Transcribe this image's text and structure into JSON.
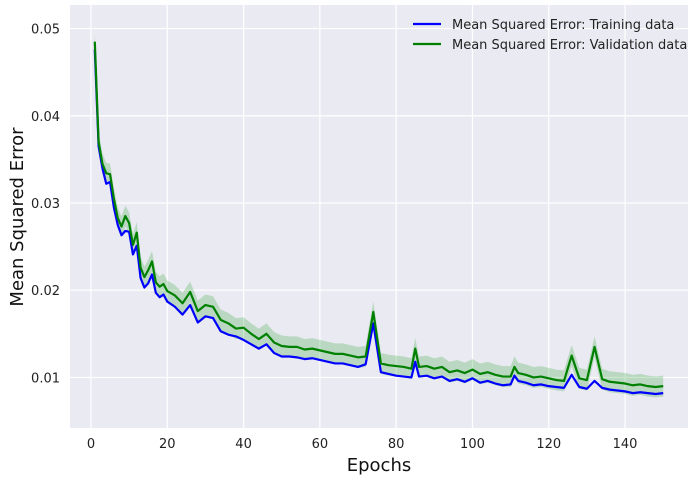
{
  "chart_data": {
    "type": "line",
    "xlabel": "Epochs",
    "ylabel": "Mean Squared Error",
    "xlim": [
      -5.5,
      156.5
    ],
    "ylim": [
      0.0042,
      0.0527
    ],
    "xticks": [
      0,
      20,
      40,
      60,
      80,
      100,
      120,
      140
    ],
    "yticks": [
      0.01,
      0.02,
      0.03,
      0.04,
      0.05
    ],
    "xtick_labels": [
      "0",
      "20",
      "40",
      "60",
      "80",
      "100",
      "120",
      "140"
    ],
    "ytick_labels": [
      "0.01",
      "0.02",
      "0.03",
      "0.04",
      "0.05"
    ],
    "grid": true,
    "legend_position": "top-right",
    "background": "#eaeaf2",
    "series": [
      {
        "name": "Mean Squared Error: Training data",
        "color": "#0000ff",
        "x": [
          1,
          2,
          3,
          4,
          5,
          6,
          7,
          8,
          9,
          10,
          11,
          12,
          13,
          14,
          15,
          16,
          17,
          18,
          19,
          20,
          22,
          24,
          26,
          28,
          30,
          32,
          34,
          36,
          38,
          40,
          42,
          44,
          46,
          48,
          50,
          52,
          54,
          56,
          58,
          60,
          62,
          64,
          66,
          68,
          70,
          72,
          74,
          76,
          78,
          80,
          82,
          84,
          85,
          86,
          88,
          90,
          92,
          94,
          96,
          98,
          100,
          102,
          104,
          106,
          108,
          110,
          111,
          112,
          114,
          116,
          118,
          120,
          122,
          124,
          126,
          128,
          130,
          132,
          134,
          136,
          138,
          140,
          142,
          144,
          146,
          148,
          150
        ],
        "y": [
          0.0476,
          0.0365,
          0.034,
          0.0322,
          0.0324,
          0.0295,
          0.0275,
          0.0263,
          0.0268,
          0.0267,
          0.0241,
          0.0251,
          0.0214,
          0.0203,
          0.0208,
          0.0218,
          0.0197,
          0.0192,
          0.0195,
          0.0187,
          0.0181,
          0.0172,
          0.0183,
          0.0163,
          0.017,
          0.0168,
          0.0153,
          0.0149,
          0.0147,
          0.0143,
          0.0138,
          0.0133,
          0.0138,
          0.0128,
          0.0124,
          0.0124,
          0.0123,
          0.0121,
          0.0122,
          0.012,
          0.0118,
          0.0116,
          0.0116,
          0.0114,
          0.0112,
          0.0115,
          0.0162,
          0.0106,
          0.0104,
          0.0102,
          0.0101,
          0.01,
          0.0118,
          0.0101,
          0.0102,
          0.0099,
          0.0101,
          0.0096,
          0.0098,
          0.0095,
          0.0099,
          0.0094,
          0.0096,
          0.0093,
          0.0091,
          0.0092,
          0.0102,
          0.0096,
          0.0094,
          0.0091,
          0.0092,
          0.009,
          0.0089,
          0.0088,
          0.0103,
          0.0089,
          0.0087,
          0.0096,
          0.0088,
          0.0086,
          0.0085,
          0.0084,
          0.0082,
          0.0083,
          0.0082,
          0.0081,
          0.0082
        ]
      },
      {
        "name": "Mean Squared Error: Validation data",
        "color": "#008000",
        "band_color": "#4caf50",
        "x": [
          1,
          2,
          3,
          4,
          5,
          6,
          7,
          8,
          9,
          10,
          11,
          12,
          13,
          14,
          15,
          16,
          17,
          18,
          19,
          20,
          22,
          24,
          26,
          28,
          30,
          32,
          34,
          36,
          38,
          40,
          42,
          44,
          46,
          48,
          50,
          52,
          54,
          56,
          58,
          60,
          62,
          64,
          66,
          68,
          70,
          72,
          74,
          76,
          78,
          80,
          82,
          84,
          85,
          86,
          88,
          90,
          92,
          94,
          96,
          98,
          100,
          102,
          104,
          106,
          108,
          110,
          111,
          112,
          114,
          116,
          118,
          120,
          122,
          124,
          126,
          128,
          130,
          132,
          134,
          136,
          138,
          140,
          142,
          144,
          146,
          148,
          150
        ],
        "y": [
          0.0485,
          0.037,
          0.0345,
          0.0334,
          0.0333,
          0.0305,
          0.0283,
          0.0273,
          0.0285,
          0.0277,
          0.0252,
          0.0266,
          0.0226,
          0.0215,
          0.0223,
          0.0233,
          0.0209,
          0.0204,
          0.0207,
          0.0199,
          0.0194,
          0.0185,
          0.0198,
          0.0176,
          0.0183,
          0.0181,
          0.0166,
          0.0162,
          0.0156,
          0.0157,
          0.015,
          0.0144,
          0.015,
          0.014,
          0.0136,
          0.0135,
          0.0135,
          0.0132,
          0.0133,
          0.0131,
          0.0129,
          0.0127,
          0.0127,
          0.0125,
          0.0123,
          0.0124,
          0.0175,
          0.0116,
          0.0114,
          0.0113,
          0.0112,
          0.011,
          0.0133,
          0.0112,
          0.0113,
          0.011,
          0.0112,
          0.0106,
          0.0108,
          0.0105,
          0.0109,
          0.0104,
          0.0106,
          0.0103,
          0.0101,
          0.0101,
          0.0112,
          0.0105,
          0.0103,
          0.01,
          0.0101,
          0.0099,
          0.0097,
          0.0096,
          0.0125,
          0.0099,
          0.0097,
          0.0135,
          0.0098,
          0.0095,
          0.0094,
          0.0093,
          0.0091,
          0.0092,
          0.009,
          0.0089,
          0.009
        ],
        "band_width": 0.0012
      }
    ]
  }
}
